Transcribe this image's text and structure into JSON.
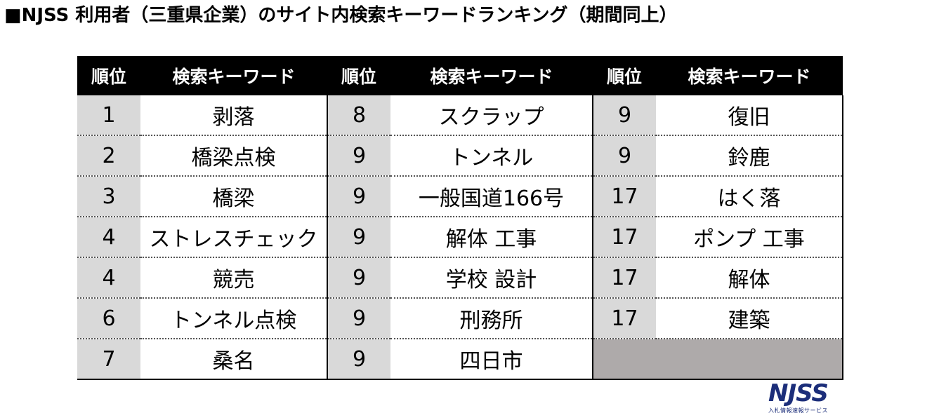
{
  "title": "■NJSS 利用者（三重県企業）のサイト内検索キーワードランキング（期間同上）",
  "headers": [
    "順位",
    "検索キーワード",
    "順位",
    "検索キーワード",
    "順位",
    "検索キーワード"
  ],
  "rows": [
    {
      "r1": "1",
      "k1": "剥落",
      "r2": "8",
      "k2": "スクラップ",
      "r3": "9",
      "k3": "復旧"
    },
    {
      "r1": "2",
      "k1": "橋梁点検",
      "r2": "9",
      "k2": "トンネル",
      "r3": "9",
      "k3": "鈴鹿"
    },
    {
      "r1": "3",
      "k1": "橋梁",
      "r2": "9",
      "k2": "一般国道166号",
      "r3": "17",
      "k3": "はく落"
    },
    {
      "r1": "4",
      "k1": "ストレスチェック",
      "r2": "9",
      "k2": "解体 工事",
      "r3": "17",
      "k3": "ポンプ 工事"
    },
    {
      "r1": "4",
      "k1": "競売",
      "r2": "9",
      "k2": "学校 設計",
      "r3": "17",
      "k3": "解体"
    },
    {
      "r1": "6",
      "k1": "トンネル点検",
      "r2": "9",
      "k2": "刑務所",
      "r3": "17",
      "k3": "建築"
    },
    {
      "r1": "7",
      "k1": "桑名",
      "r2": "9",
      "k2": "四日市",
      "r3": "",
      "k3": ""
    }
  ],
  "logo": {
    "mark": "NJSS",
    "sub": "入札情報速報サービス"
  }
}
